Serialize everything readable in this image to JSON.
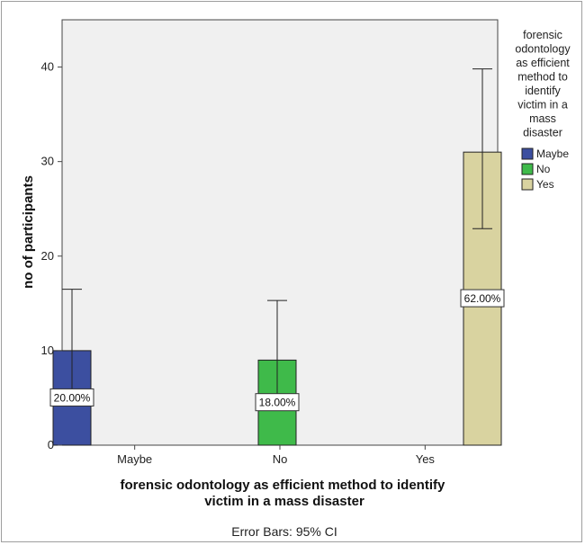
{
  "chart_data": {
    "type": "bar",
    "categories": [
      "Maybe",
      "No",
      "Yes"
    ],
    "values": [
      10,
      9,
      31
    ],
    "error_bars": {
      "type": "95% CI",
      "lower": [
        5.5,
        4.6,
        22.9
      ],
      "upper": [
        16.5,
        15.3,
        39.8
      ]
    },
    "data_labels": [
      "20.00%",
      "18.00%",
      "62.00%"
    ],
    "colors": [
      "#3c4fa0",
      "#3fba4a",
      "#d9d3a0"
    ],
    "xlabel": "forensic odontology  as efficient method to identify victim in a mass disaster",
    "ylabel": "no of participants",
    "ylim": [
      0,
      45
    ],
    "yticks": [
      0,
      10,
      20,
      30,
      40
    ],
    "grid": false,
    "plot_background": "#f0f0f0",
    "legend": {
      "title": "forensic odontology as efficient method to identify victim in a mass disaster",
      "placement": "right",
      "entries": [
        "Maybe",
        "No",
        "Yes"
      ]
    },
    "footnote": "Error Bars: 95% CI"
  }
}
